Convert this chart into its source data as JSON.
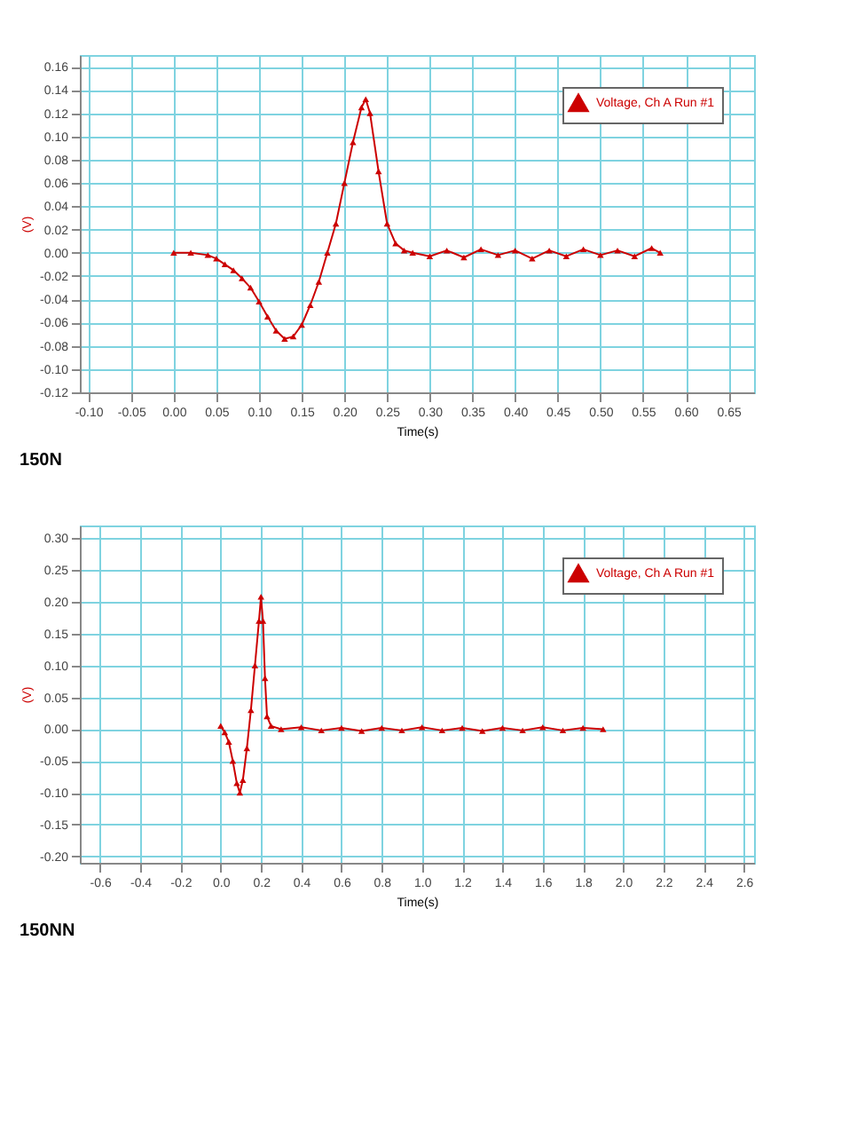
{
  "chart_data": [
    {
      "type": "line",
      "xlabel": "Time(s)",
      "ylabel": "(V)",
      "annotations": [
        "150N"
      ],
      "legend": "top right",
      "grid": true,
      "marker": "triangle",
      "line_style": "solid",
      "xlim": [
        -0.11,
        0.68
      ],
      "xticks": [
        {
          "value": -0.1,
          "label": "-0.10"
        },
        -0.05,
        {
          "value": 0,
          "label": "0.00"
        },
        0.05,
        {
          "value": 0.1,
          "label": "0.10"
        },
        0.15,
        {
          "value": 0.2,
          "label": "0.20"
        },
        0.25,
        {
          "value": 0.3,
          "label": "0.30"
        },
        0.35,
        {
          "value": 0.4,
          "label": "0.40"
        },
        0.45,
        {
          "value": 0.5,
          "label": "0.50"
        },
        0.55,
        {
          "value": 0.6,
          "label": "0.60"
        },
        0.65
      ],
      "ylim": [
        -0.12,
        0.17
      ],
      "yticks": [
        -0.12,
        {
          "value": -0.1,
          "label": "-0.10"
        },
        -0.08,
        -0.06,
        -0.04,
        -0.02,
        {
          "value": 0,
          "label": "0.00"
        },
        0.02,
        0.04,
        0.06,
        0.08,
        {
          "value": 0.1,
          "label": "0.10"
        },
        0.12,
        0.14,
        0.16
      ],
      "series": [
        {
          "name": "Voltage, Ch A Run #1",
          "color": "#cc0000",
          "x": [
            0,
            0.02,
            0.04,
            0.05,
            0.06,
            0.07,
            0.08,
            0.09,
            0.1,
            0.11,
            0.12,
            0.13,
            0.14,
            0.15,
            0.16,
            0.17,
            0.18,
            0.19,
            0.2,
            0.21,
            0.22,
            0.225,
            0.23,
            0.24,
            0.25,
            0.26,
            0.27,
            0.28,
            0.3,
            0.32,
            0.34,
            0.36,
            0.38,
            0.4,
            0.42,
            0.44,
            0.46,
            0.48,
            0.5,
            0.52,
            0.54,
            0.56,
            0.57
          ],
          "values": [
            0,
            0,
            -0.002,
            -0.005,
            -0.01,
            -0.015,
            -0.022,
            -0.03,
            -0.042,
            -0.055,
            -0.067,
            -0.074,
            -0.072,
            -0.062,
            -0.045,
            -0.025,
            0,
            0.025,
            0.06,
            0.095,
            0.125,
            0.132,
            0.12,
            0.07,
            0.025,
            0.008,
            0.002,
            0,
            -0.003,
            0.002,
            -0.004,
            0.003,
            -0.002,
            0.002,
            -0.005,
            0.002,
            -0.003,
            0.003,
            -0.002,
            0.002,
            -0.003,
            0.004,
            0
          ]
        }
      ]
    },
    {
      "type": "line",
      "xlabel": "Time(s)",
      "ylabel": "(V)",
      "annotations": [
        "150NN"
      ],
      "legend": "top right",
      "grid": true,
      "marker": "triangle",
      "line_style": "solid",
      "xlim": [
        -0.7,
        2.65
      ],
      "xticks": [
        -0.6,
        -0.4,
        -0.2,
        {
          "value": 0,
          "label": "0.0"
        },
        0.2,
        0.4,
        0.6,
        0.8,
        {
          "value": 1,
          "label": "1.0"
        },
        1.2,
        1.4,
        1.6,
        1.8,
        {
          "value": 2,
          "label": "2.0"
        },
        2.2,
        2.4,
        2.6
      ],
      "ylim": [
        -0.21,
        0.32
      ],
      "yticks": [
        {
          "value": -0.2,
          "label": "-0.20"
        },
        -0.15,
        {
          "value": -0.1,
          "label": "-0.10"
        },
        -0.05,
        {
          "value": 0,
          "label": "0.00"
        },
        0.05,
        {
          "value": 0.1,
          "label": "0.10"
        },
        0.15,
        {
          "value": 0.2,
          "label": "0.20"
        },
        0.25,
        {
          "value": 0.3,
          "label": "0.30"
        }
      ],
      "series": [
        {
          "name": "Voltage, Ch A Run #1",
          "color": "#cc0000",
          "x": [
            0,
            0.02,
            0.04,
            0.06,
            0.08,
            0.095,
            0.11,
            0.13,
            0.15,
            0.17,
            0.19,
            0.2,
            0.21,
            0.22,
            0.23,
            0.25,
            0.3,
            0.4,
            0.5,
            0.6,
            0.7,
            0.8,
            0.9,
            1.0,
            1.1,
            1.2,
            1.3,
            1.4,
            1.5,
            1.6,
            1.7,
            1.8,
            1.9
          ],
          "values": [
            0.005,
            -0.005,
            -0.02,
            -0.05,
            -0.085,
            -0.1,
            -0.08,
            -0.03,
            0.03,
            0.1,
            0.17,
            0.208,
            0.17,
            0.08,
            0.02,
            0.005,
            0,
            0.003,
            -0.002,
            0.002,
            -0.003,
            0.002,
            -0.002,
            0.003,
            -0.002,
            0.002,
            -0.003,
            0.002,
            -0.002,
            0.003,
            -0.002,
            0.002,
            0
          ]
        }
      ]
    }
  ]
}
